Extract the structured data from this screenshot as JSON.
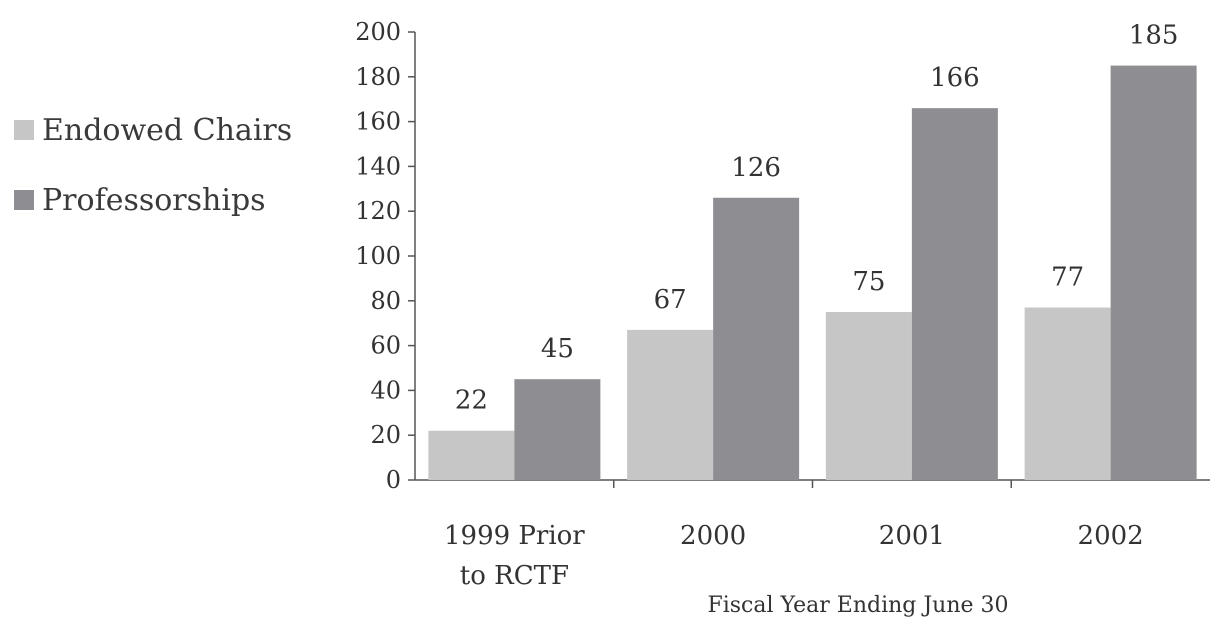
{
  "chart_data": {
    "type": "bar",
    "categories": [
      "1999 Prior to RCTF",
      "2000",
      "2001",
      "2002"
    ],
    "category_lines": [
      [
        "1999 Prior",
        "to RCTF"
      ],
      [
        "2000"
      ],
      [
        "2001"
      ],
      [
        "2002"
      ]
    ],
    "series": [
      {
        "name": "Endowed Chairs",
        "values": [
          22,
          67,
          75,
          77
        ],
        "color": "#c6c6c6"
      },
      {
        "name": "Professorships",
        "values": [
          45,
          126,
          166,
          185
        ],
        "color": "#8e8e92"
      }
    ],
    "xlabel": "Fiscal Year Ending June 30",
    "ylabel": "",
    "ylim": [
      0,
      200
    ],
    "yticks": [
      0,
      20,
      40,
      60,
      80,
      100,
      120,
      140,
      160,
      180,
      200
    ],
    "grid": false,
    "legend_position": "left"
  }
}
